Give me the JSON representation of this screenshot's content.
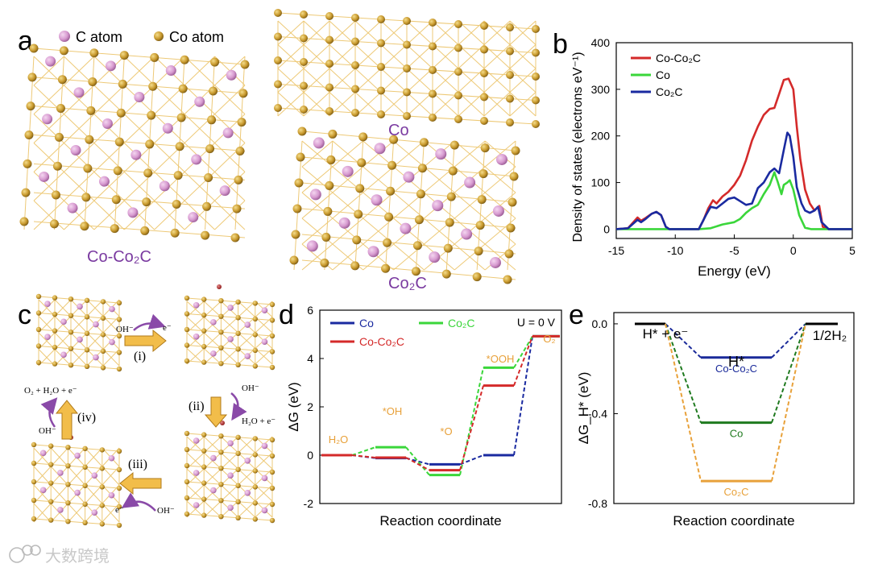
{
  "panels": {
    "a": "a",
    "b": "b",
    "c": "c",
    "d": "d",
    "e": "e"
  },
  "legend_a": {
    "c_atom": "C atom",
    "co_atom": "Co atom"
  },
  "structures": {
    "co_co2c": "Co-Co₂C",
    "co": "Co",
    "co2c": "Co₂C"
  },
  "cycle": {
    "step1": "(i)",
    "step2": "(ii)",
    "step3": "(iii)",
    "step4": "(iv)",
    "oh": "OH⁻",
    "e": "e⁻",
    "h2o_e": "H₂O + e⁻",
    "o2_h2o_e": "O₂ + H₂O + e⁻"
  },
  "watermark": "大数跨境",
  "colors": {
    "red": "#d42a2a",
    "green": "#3ad63a",
    "blue": "#1a2aa0",
    "orange": "#e8a13a",
    "darkgreen": "#1f7a1f",
    "navy": "#1a2a9a"
  },
  "chart_data": [
    {
      "panel": "b",
      "type": "line",
      "xlabel": "Energy (eV)",
      "ylabel": "Density of states (electrons eV⁻¹)",
      "xlim": [
        -15,
        5
      ],
      "ylim": [
        -20,
        400
      ],
      "xticks": [
        -15,
        -10,
        -5,
        0,
        5
      ],
      "yticks": [
        0,
        100,
        200,
        300,
        400
      ],
      "legend_position": "top-left",
      "series": [
        {
          "name": "Co-Co₂C",
          "color": "#d42a2a",
          "x": [
            -15,
            -14,
            -13.2,
            -12.9,
            -12.5,
            -12,
            -11.6,
            -11.2,
            -10.8,
            -10.5,
            -8,
            -7.6,
            -7.2,
            -6.8,
            -6.5,
            -6,
            -5.5,
            -5,
            -4.5,
            -4,
            -3.5,
            -3,
            -2.5,
            -2,
            -1.6,
            -1.2,
            -0.8,
            -0.4,
            0,
            0.3,
            0.6,
            1,
            1.4,
            1.8,
            2.2,
            2.5,
            3,
            5
          ],
          "y": [
            0,
            2,
            25,
            18,
            24,
            33,
            37,
            30,
            5,
            0,
            0,
            20,
            45,
            62,
            55,
            70,
            80,
            95,
            115,
            148,
            190,
            220,
            245,
            258,
            260,
            290,
            320,
            323,
            300,
            220,
            150,
            85,
            55,
            40,
            50,
            5,
            0,
            0
          ]
        },
        {
          "name": "Co",
          "color": "#3ad63a",
          "x": [
            -15,
            -8,
            -7,
            -6,
            -5,
            -4.5,
            -4,
            -3.5,
            -3,
            -2.5,
            -2,
            -1.6,
            -1.3,
            -1,
            -0.8,
            -0.5,
            -0.3,
            0,
            0.5,
            1,
            1.5,
            5
          ],
          "y": [
            0,
            0,
            2,
            10,
            15,
            22,
            35,
            45,
            52,
            75,
            95,
            122,
            100,
            75,
            95,
            100,
            105,
            85,
            30,
            3,
            0,
            0
          ]
        },
        {
          "name": "Co₂C",
          "color": "#1a2aa0",
          "x": [
            -15,
            -14,
            -13.2,
            -12.9,
            -12.5,
            -12,
            -11.6,
            -11.2,
            -10.8,
            -10.5,
            -8,
            -7.4,
            -7,
            -6.5,
            -6,
            -5.5,
            -5,
            -4.5,
            -4,
            -3.5,
            -3,
            -2.5,
            -2,
            -1.6,
            -1.2,
            -0.8,
            -0.5,
            -0.3,
            0,
            0.3,
            0.7,
            1,
            1.4,
            1.8,
            2.1,
            2.4,
            3,
            5
          ],
          "y": [
            0,
            2,
            20,
            15,
            22,
            33,
            37,
            30,
            5,
            0,
            0,
            30,
            48,
            45,
            55,
            65,
            68,
            60,
            52,
            55,
            88,
            100,
            122,
            130,
            120,
            170,
            207,
            200,
            155,
            90,
            55,
            40,
            35,
            40,
            48,
            15,
            0,
            0
          ]
        }
      ]
    },
    {
      "panel": "d",
      "type": "line",
      "xlabel": "Reaction coordinate",
      "ylabel": "ΔG (eV)",
      "annotation": "U = 0 V",
      "ylim": [
        -2,
        6
      ],
      "yticks": [
        -2,
        0,
        2,
        4,
        6
      ],
      "categories": [
        "H₂O",
        "*OH",
        "*O",
        "*OOH",
        "O₂"
      ],
      "legend_position": "top",
      "series": [
        {
          "name": "Co",
          "color": "#1a2aa0",
          "values": [
            0,
            -0.12,
            -0.38,
            0,
            4.92
          ]
        },
        {
          "name": "Co₂C",
          "color": "#3ad63a",
          "values": [
            0,
            0.33,
            -0.82,
            3.62,
            4.92
          ]
        },
        {
          "name": "Co-Co₂C",
          "color": "#d42a2a",
          "values": [
            0,
            -0.1,
            -0.62,
            2.88,
            4.92
          ]
        }
      ]
    },
    {
      "panel": "e",
      "type": "line",
      "xlabel": "Reaction coordinate",
      "ylabel": "ΔG_H* (eV)",
      "ylim": [
        -0.8,
        0.05
      ],
      "yticks": [
        0.0,
        -0.4,
        -0.8
      ],
      "tick_labels": [
        "0.0",
        "-0.4",
        "-0.8"
      ],
      "states": [
        "H* + e⁻",
        "H*",
        "1/2H₂"
      ],
      "series": [
        {
          "name": "Co-Co₂C",
          "color": "#1a2a9a",
          "values": [
            0,
            -0.15,
            0
          ]
        },
        {
          "name": "Co",
          "color": "#1f7a1f",
          "values": [
            0,
            -0.44,
            0
          ]
        },
        {
          "name": "Co₂C",
          "color": "#e8a13a",
          "values": [
            0,
            -0.7,
            0
          ]
        }
      ]
    }
  ]
}
